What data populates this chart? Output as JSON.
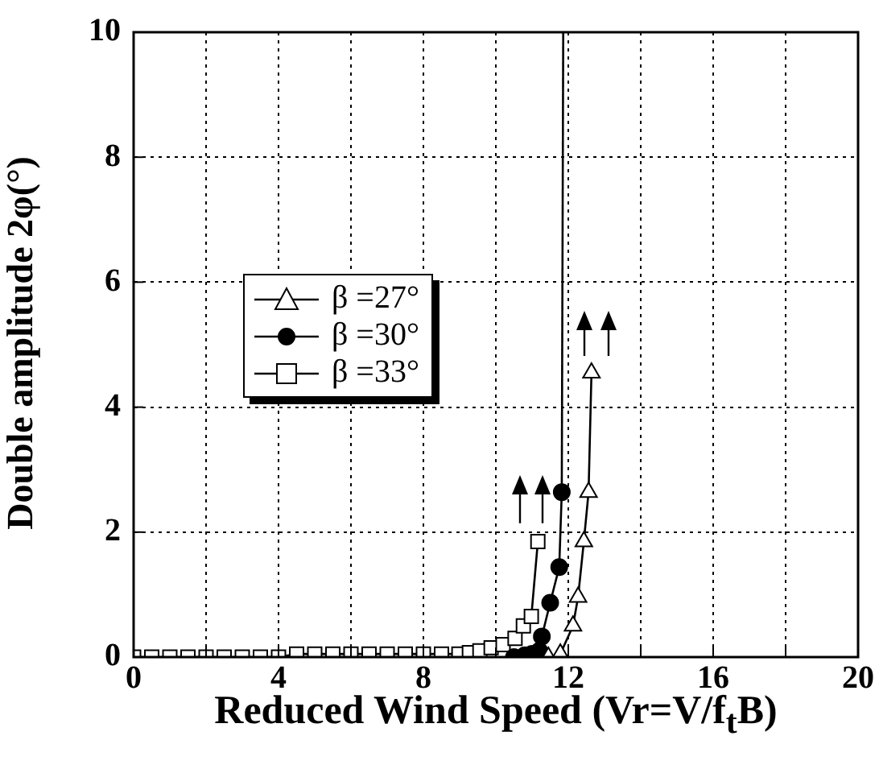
{
  "chart_data": {
    "type": "line",
    "xlabel": "Reduced Wind Speed (Vr=V/f$_{t}$B)",
    "ylabel": "Double amplitude 2φ(°)",
    "xlim": [
      0,
      20
    ],
    "xticks": [
      0,
      {
        "value": 2,
        "label": null
      },
      4,
      {
        "value": 6,
        "label": null
      },
      8,
      {
        "value": 10,
        "label": null
      },
      12,
      {
        "value": 14,
        "label": null
      },
      16,
      {
        "value": 18,
        "label": null
      },
      20
    ],
    "ylim": [
      0,
      10
    ],
    "yticks": [
      0,
      2,
      4,
      6,
      8,
      10
    ],
    "grid": true,
    "legend": "top left",
    "line_style": "solid",
    "series": [
      {
        "name": "β =27°",
        "color": "#000000",
        "marker": "triangle",
        "x": [
          11.45,
          11.78,
          12.13,
          12.27,
          12.43,
          12.56,
          12.64
        ],
        "values": [
          0,
          0.05,
          0.5,
          0.96,
          1.85,
          2.64,
          4.55
        ]
      },
      {
        "name": "β =30°",
        "color": "#000000",
        "marker": "circle",
        "x": [
          10.5,
          10.8,
          11,
          11.2,
          11.27,
          11.5,
          11.75,
          11.82
        ],
        "values": [
          0,
          0.03,
          0.05,
          0.1,
          0.33,
          0.87,
          1.44,
          2.64
        ]
      },
      {
        "name": "β =33°",
        "color": "#000000",
        "marker": "square",
        "x": [
          0,
          0.5,
          1,
          1.5,
          2,
          2.5,
          3,
          3.5,
          4,
          4.5,
          5,
          5.5,
          6,
          6.5,
          7,
          7.5,
          8,
          8.5,
          8.98,
          9.27,
          9.56,
          9.87,
          10.2,
          10.53,
          10.76,
          10.98,
          11.16
        ],
        "values": [
          0,
          0,
          0,
          0,
          0,
          0,
          0,
          0,
          0,
          0.05,
          0.05,
          0.05,
          0.05,
          0.05,
          0.05,
          0.05,
          0.05,
          0.05,
          0.05,
          0.07,
          0.1,
          0.15,
          0.2,
          0.3,
          0.5,
          0.65,
          1.85
        ]
      },
      {
        "type": "line",
        "color": "#000000",
        "marker": "none",
        "x": [
          11.82,
          11.86
        ],
        "values": [
          2.64,
          10
        ]
      }
    ]
  }
}
